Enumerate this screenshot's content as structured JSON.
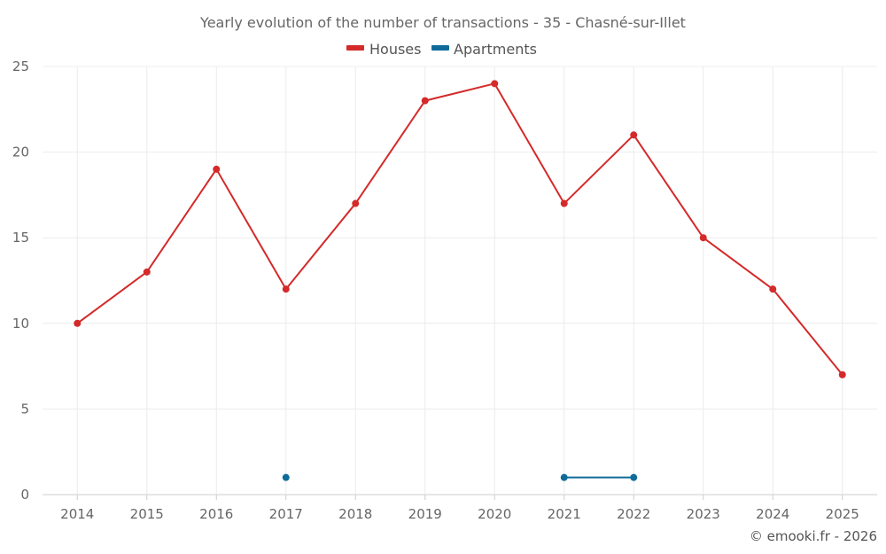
{
  "chart_data": {
    "type": "line",
    "title": "Yearly evolution of the number of transactions - 35 - Chasné-sur-Illet",
    "xlabel": "",
    "ylabel": "",
    "categories": [
      "2014",
      "2015",
      "2016",
      "2017",
      "2018",
      "2019",
      "2020",
      "2021",
      "2022",
      "2023",
      "2024",
      "2025"
    ],
    "yticks": [
      "0",
      "5",
      "10",
      "15",
      "20",
      "25"
    ],
    "ylim": [
      0,
      25
    ],
    "grid": true,
    "legend_position": "top-center",
    "series": [
      {
        "name": "Houses",
        "color": "#d42a2a",
        "values": [
          10,
          13,
          19,
          12,
          17,
          23,
          24,
          17,
          21,
          15,
          12,
          7
        ]
      },
      {
        "name": "Apartments",
        "color": "#106b9a",
        "values": [
          null,
          null,
          null,
          1,
          null,
          null,
          null,
          1,
          1,
          null,
          null,
          null
        ]
      }
    ],
    "credit": "© emooki.fr - 2026"
  }
}
